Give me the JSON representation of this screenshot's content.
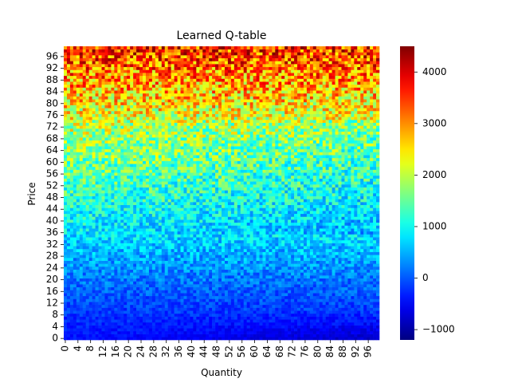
{
  "chart_data": {
    "type": "heatmap",
    "title": "Learned Q-table",
    "xlabel": "Quantity",
    "ylabel": "Price",
    "x_range": [
      0,
      99
    ],
    "y_range": [
      0,
      99
    ],
    "x_tick_labels": [
      "0",
      "4",
      "8",
      "12",
      "16",
      "20",
      "24",
      "28",
      "32",
      "36",
      "40",
      "44",
      "48",
      "52",
      "56",
      "60",
      "64",
      "68",
      "72",
      "76",
      "80",
      "84",
      "88",
      "92",
      "96"
    ],
    "y_tick_labels": [
      "0",
      "4",
      "8",
      "12",
      "16",
      "20",
      "24",
      "28",
      "32",
      "36",
      "40",
      "44",
      "48",
      "52",
      "56",
      "60",
      "64",
      "68",
      "72",
      "76",
      "80",
      "84",
      "88",
      "92",
      "96"
    ],
    "colormap": "jet",
    "value_range": [
      -1200,
      4500
    ],
    "colorbar_ticks": [
      "−1000",
      "0",
      "1000",
      "2000",
      "3000",
      "4000"
    ],
    "colorbar_tick_values": [
      -1000,
      0,
      1000,
      2000,
      3000,
      4000
    ],
    "value_trend": {
      "description_rows_price_low_to_high": [
        {
          "price": 0,
          "approx_mean_value": -400
        },
        {
          "price": 12,
          "approx_mean_value": -100
        },
        {
          "price": 24,
          "approx_mean_value": 300
        },
        {
          "price": 36,
          "approx_mean_value": 800
        },
        {
          "price": 48,
          "approx_mean_value": 1200
        },
        {
          "price": 60,
          "approx_mean_value": 1600
        },
        {
          "price": 72,
          "approx_mean_value": 2000
        },
        {
          "price": 84,
          "approx_mean_value": 2700
        },
        {
          "price": 99,
          "approx_mean_value": 3600
        }
      ]
    },
    "grid": false,
    "legend": "colorbar-right"
  }
}
